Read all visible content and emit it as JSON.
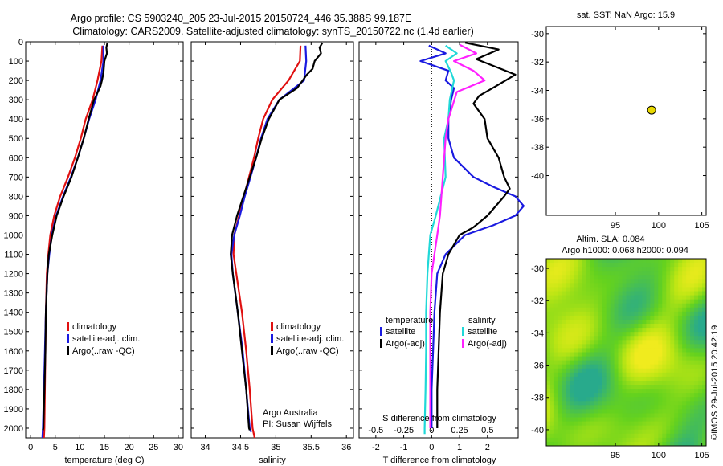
{
  "header": {
    "line1": "Argo profile: CS 5903240_205 23-Jul-2015 20150724_446 35.388S 99.187E",
    "line2": "Climatology: CARS2009. Satellite-adjusted climatology: synTS_20150722.nc (1.4d earlier)"
  },
  "colors": {
    "climatology": "#e01010",
    "satellite": "#1a1ae0",
    "argo": "#000000",
    "sal_satellite": "#20d8d8",
    "sal_argo": "#ff20ff",
    "argo_marker": "#e8d800"
  },
  "chart_data": [
    {
      "type": "line",
      "name": "temperature-profile",
      "xlabel": "temperature (deg C)",
      "xlim": [
        -1,
        31
      ],
      "xticks": [
        0,
        5,
        10,
        15,
        20,
        25,
        30
      ],
      "ylim": [
        2050,
        0
      ],
      "yticks": [
        0,
        100,
        200,
        300,
        400,
        500,
        600,
        700,
        800,
        900,
        1000,
        1100,
        1200,
        1300,
        1400,
        1500,
        1600,
        1700,
        1800,
        1900,
        2000
      ],
      "legend": [
        "climatology",
        "satellite-adj. clim.",
        "Argo(..raw -QC)"
      ],
      "series": [
        {
          "name": "climatology",
          "color_key": "climatology",
          "x": [
            14.6,
            14.4,
            13.6,
            12.6,
            11.2,
            10.2,
            9.0,
            7.6,
            6.0,
            4.8,
            4.0,
            3.6,
            3.3,
            3.1,
            3.0,
            2.9,
            2.8,
            2.7
          ],
          "y": [
            20,
            100,
            200,
            300,
            400,
            500,
            600,
            700,
            800,
            900,
            1000,
            1100,
            1200,
            1400,
            1600,
            1800,
            2000,
            2050
          ]
        },
        {
          "name": "satellite-adj. clim.",
          "color_key": "satellite",
          "x": [
            14.8,
            14.8,
            14.2,
            13.2,
            11.9,
            10.8,
            9.6,
            8.2,
            6.6,
            5.2,
            4.3,
            3.8,
            3.4,
            3.1,
            2.9,
            2.7,
            2.5,
            2.4
          ],
          "y": [
            20,
            100,
            200,
            300,
            400,
            500,
            600,
            700,
            800,
            900,
            1000,
            1100,
            1200,
            1400,
            1600,
            1800,
            2000,
            2050
          ]
        },
        {
          "name": "Argo(..raw -QC)",
          "color_key": "argo",
          "x": [
            15.6,
            15.4,
            15.5,
            15.0,
            14.9,
            14.8,
            14.5,
            14.2,
            13.3,
            12.9,
            11.8,
            10.8,
            9.6,
            8.3,
            6.7,
            5.3,
            4.4,
            3.7,
            3.4,
            3.1,
            3.0,
            2.8,
            2.6,
            2.5
          ],
          "y": [
            5,
            30,
            60,
            100,
            130,
            160,
            200,
            230,
            280,
            300,
            400,
            500,
            600,
            700,
            800,
            900,
            1000,
            1100,
            1200,
            1400,
            1600,
            1800,
            2000,
            2010
          ]
        }
      ]
    },
    {
      "type": "line",
      "name": "salinity-profile",
      "xlabel": "salinity",
      "xlim": [
        33.8,
        36.1
      ],
      "xticks": [
        34,
        34.5,
        35,
        35.5,
        36
      ],
      "ylim": [
        2050,
        0
      ],
      "legend": [
        "climatology",
        "satellite-adj. clim.",
        "Argo(..raw -QC)"
      ],
      "annotation": [
        "Argo Australia",
        "PI: Susan Wijffels"
      ],
      "series": [
        {
          "name": "climatology",
          "color_key": "climatology",
          "x": [
            35.35,
            35.34,
            35.18,
            34.95,
            34.82,
            34.75,
            34.69,
            34.62,
            34.55,
            34.48,
            34.41,
            34.4,
            34.44,
            34.52,
            34.58,
            34.63,
            34.67,
            34.7
          ],
          "y": [
            20,
            100,
            200,
            300,
            400,
            500,
            600,
            700,
            800,
            900,
            1000,
            1100,
            1200,
            1400,
            1600,
            1800,
            2000,
            2050
          ]
        },
        {
          "name": "satellite-adj. clim.",
          "color_key": "satellite",
          "x": [
            35.42,
            35.43,
            35.4,
            35.05,
            34.88,
            34.79,
            34.72,
            34.64,
            34.56,
            34.49,
            34.41,
            34.37,
            34.39,
            34.46,
            34.53,
            34.58,
            34.63,
            34.65
          ],
          "y": [
            20,
            100,
            200,
            300,
            400,
            500,
            600,
            700,
            800,
            900,
            1000,
            1100,
            1200,
            1400,
            1600,
            1800,
            2000,
            2020
          ]
        },
        {
          "name": "Argo(..raw -QC)",
          "color_key": "argo",
          "x": [
            35.66,
            35.62,
            35.64,
            35.55,
            35.52,
            35.44,
            35.38,
            35.3,
            35.05,
            34.9,
            34.8,
            34.72,
            34.63,
            34.54,
            34.45,
            34.38,
            34.36,
            34.39,
            34.46,
            34.52,
            34.58,
            34.62,
            34.63
          ],
          "y": [
            5,
            30,
            60,
            100,
            140,
            170,
            200,
            240,
            300,
            400,
            500,
            600,
            700,
            800,
            900,
            1000,
            1100,
            1200,
            1400,
            1600,
            1800,
            2000,
            2010
          ]
        }
      ]
    },
    {
      "type": "line",
      "name": "difference-from-climatology",
      "xlabel": "T difference from climatology",
      "xlabel_top": "S difference from climatology",
      "xlim": [
        -2.6,
        3.1
      ],
      "xticks": [
        -2,
        -1,
        0,
        1,
        2
      ],
      "xticks_top": [
        "-0.5",
        "-0.25",
        "0",
        "0.25",
        "0.5"
      ],
      "ylim": [
        2050,
        0
      ],
      "legend_titles": [
        "temperature",
        "salinity"
      ],
      "legend": [
        "satellite",
        "Argo(-adj)",
        "satellite",
        "Argo(-adj)"
      ],
      "series": [
        {
          "name": "temperature satellite",
          "color_key": "satellite",
          "x": [
            -0.1,
            0.5,
            -0.4,
            0.6,
            0.5,
            0.8,
            0.7,
            0.6,
            0.6,
            0.8,
            1.5,
            2.2,
            3.0,
            3.3,
            3.0,
            2.2,
            1.2,
            0.5,
            0.2,
            0.1,
            0.05,
            0.0,
            0.0
          ],
          "y": [
            20,
            60,
            100,
            150,
            200,
            240,
            300,
            400,
            500,
            600,
            700,
            750,
            800,
            850,
            900,
            950,
            1000,
            1100,
            1200,
            1400,
            1600,
            1800,
            2000
          ]
        },
        {
          "name": "temperature Argo(-adj)",
          "color_key": "argo",
          "x": [
            1.2,
            2.4,
            1.6,
            3.0,
            2.3,
            1.7,
            1.5,
            1.9,
            2.0,
            2.4,
            2.6,
            2.8,
            2.6,
            2.3,
            2.0,
            1.5,
            1.0,
            0.6,
            0.4,
            0.3,
            0.25,
            0.2,
            0.2
          ],
          "y": [
            5,
            40,
            90,
            170,
            230,
            280,
            320,
            400,
            500,
            600,
            700,
            760,
            800,
            850,
            900,
            960,
            1000,
            1100,
            1200,
            1400,
            1600,
            1800,
            2000
          ]
        },
        {
          "name": "salinity satellite",
          "color_key": "sal_satellite",
          "x": [
            0.5,
            0.9,
            0.5,
            0.7,
            0.8,
            0.65,
            0.6,
            0.45,
            0.5,
            0.15,
            -0.05,
            -0.1,
            -0.15,
            -0.2,
            -0.2,
            -0.22,
            -0.25,
            -0.25
          ],
          "y": [
            20,
            60,
            100,
            160,
            200,
            300,
            400,
            500,
            700,
            900,
            1000,
            1100,
            1200,
            1400,
            1600,
            1800,
            2000,
            2030
          ]
        },
        {
          "name": "salinity Argo(-adj)",
          "color_key": "sal_argo",
          "x": [
            1.0,
            1.6,
            0.8,
            1.5,
            1.9,
            0.9,
            0.6,
            0.5,
            0.4,
            0.3,
            0.2,
            0.0,
            -0.05,
            -0.05,
            -0.05,
            -0.05
          ],
          "y": [
            15,
            60,
            100,
            150,
            200,
            260,
            400,
            500,
            700,
            900,
            1000,
            1200,
            1400,
            1600,
            1800,
            2000
          ]
        }
      ]
    },
    {
      "type": "scatter",
      "name": "float-location",
      "title": "sat. SST: NaN Argo: 15.9",
      "xlim": [
        87,
        105.5
      ],
      "ylim": [
        -42.8,
        -29.5
      ],
      "xticks": [
        95,
        100,
        105
      ],
      "yticks": [
        -30,
        -32,
        -34,
        -36,
        -38,
        -40
      ],
      "points": [
        {
          "x": 99.19,
          "y": -35.39
        }
      ]
    },
    {
      "type": "heatmap",
      "name": "altimetry-sla",
      "title_line1": "Altim. SLA: 0.084",
      "title_line2": "Argo h1000: 0.068 h2000: 0.094",
      "xlim": [
        87,
        105.5
      ],
      "ylim": [
        -41,
        -29.4
      ],
      "xticks": [
        95,
        100,
        105
      ],
      "yticks": [
        -30,
        -32,
        -34,
        -36,
        -38,
        -40
      ]
    }
  ],
  "credit": "©IMOS 29-Jul-2015 20:42:19"
}
